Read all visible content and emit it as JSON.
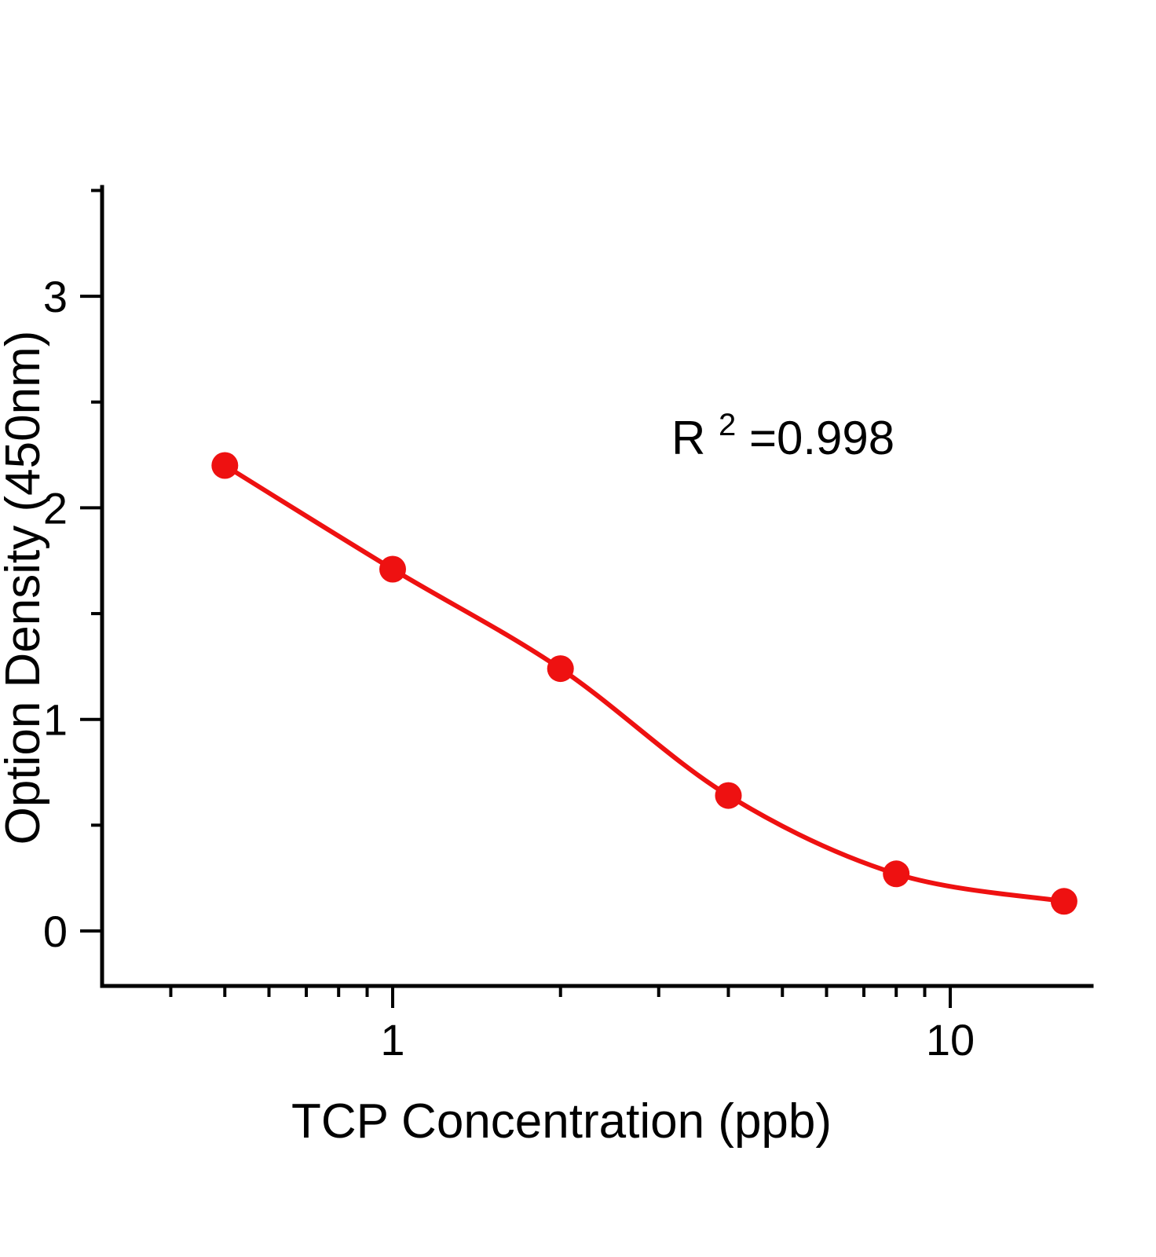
{
  "chart_data": {
    "type": "scatter",
    "title": "",
    "xlabel": "TCP Concentration (ppb)",
    "ylabel": "Option Density (450nm)",
    "x_scale": "log",
    "y_scale": "linear",
    "x": [
      0.5,
      1,
      2,
      4,
      8,
      16
    ],
    "y": [
      2.2,
      1.71,
      1.24,
      0.64,
      0.27,
      0.14
    ],
    "fit": "smooth sigmoid curve through points",
    "xlim": [
      0.3,
      18
    ],
    "ylim": [
      -0.26,
      3.51
    ],
    "xticks": [
      1,
      10
    ],
    "xtick_labels": [
      "1",
      "10"
    ],
    "yticks": [
      0,
      1,
      2,
      3
    ],
    "ytick_labels": [
      "0",
      "1",
      "2",
      "3"
    ],
    "x_minor_ticks": [
      0.4,
      0.5,
      0.6,
      0.7,
      0.8,
      0.9,
      2,
      3,
      4,
      5,
      6,
      7,
      8,
      9
    ],
    "y_minor_ticks": [
      0.5,
      1.5,
      2.5,
      3.5
    ],
    "grid": false,
    "legend": null,
    "annotation": {
      "prefix": "R",
      "superscript": "2",
      "suffix": "=0.998"
    },
    "colors": {
      "points": "#ee1111",
      "curve": "#ee1111",
      "axis": "#000000",
      "text": "#000000"
    },
    "marker_radius": 17,
    "curve_width": 6
  }
}
